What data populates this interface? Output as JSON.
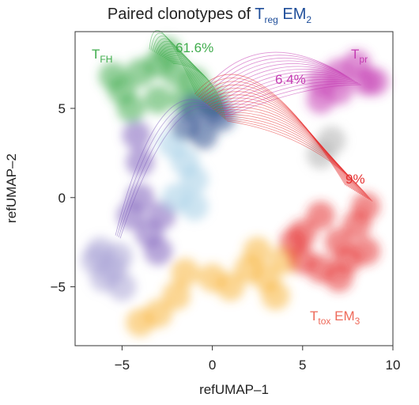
{
  "chart_data": {
    "type": "scatter",
    "title": {
      "text": "Paired clonotypes of ",
      "sub_main": "T",
      "sub_script": "reg",
      "tail": " EM",
      "tail_script": "2"
    },
    "xlabel": "refUMAP–1",
    "ylabel": "refUMAP–2",
    "xlim": [
      -7.6,
      10
    ],
    "ylim": [
      -8.3,
      9.3
    ],
    "xticks": [
      {
        "value": -5,
        "label": "−5"
      },
      0,
      5,
      10
    ],
    "yticks": [
      {
        "value": -5,
        "label": "−5"
      },
      0,
      5
    ],
    "annotations": [
      {
        "main": "T",
        "script": "FH"
      },
      {
        "text": "61.6%"
      },
      {
        "main": "T",
        "script": "pr"
      },
      {
        "text": "6.4%"
      },
      {
        "text": "9%"
      },
      {
        "main": "T",
        "script": "tox",
        "tail": " EM",
        "tail_script": "3"
      }
    ],
    "series": [
      {
        "color": "#a9a4d6",
        "x": [
          -6.5,
          -6,
          -5.5,
          -5,
          -6.2,
          -5.2
        ],
        "y": [
          -3.5,
          -4.5,
          -4,
          -5,
          -3,
          -3.3
        ]
      },
      {
        "color": "#f7b53c",
        "x": [
          -2,
          -3,
          0,
          2,
          3,
          4,
          3.5,
          1,
          -4,
          -1.5,
          2.5
        ],
        "y": [
          -5.5,
          -6.5,
          -4.5,
          -4,
          -4.5,
          -3.5,
          -5.5,
          -5,
          -7,
          -4.2,
          -3
        ]
      },
      {
        "color": "#7d5fbc",
        "x": [
          -4,
          -4,
          -4.5,
          -3.5,
          -3,
          -4.2,
          -2.8
        ],
        "y": [
          2,
          0,
          -1,
          -2,
          -3,
          3.5,
          -1
        ]
      },
      {
        "color": "#a3cde6",
        "x": [
          -1.5,
          -1,
          -2,
          -1,
          -2.2
        ],
        "y": [
          2,
          1,
          0,
          -0.5,
          3
        ]
      },
      {
        "color": "#e53030",
        "x": [
          5,
          6,
          7,
          8,
          8.5,
          7,
          6,
          8.5,
          5,
          4.5,
          7.5
        ],
        "y": [
          -3.5,
          -4,
          -2.5,
          -1.5,
          -3,
          -4.5,
          -1,
          -0.5,
          -2,
          -2.5,
          -3.5
        ]
      },
      {
        "color": "#3fac4c",
        "x": [
          -5,
          -4,
          -3,
          -2,
          -1,
          -4.5,
          -3,
          -1.5,
          0,
          -5.5,
          -2.5
        ],
        "y": [
          6,
          7,
          7.5,
          7,
          6.5,
          5,
          5.5,
          5.5,
          5.5,
          6.8,
          8.2
        ]
      },
      {
        "color": "#2b4a8c",
        "x": [
          -1,
          0,
          -1.5,
          0.5,
          -0.5
        ],
        "y": [
          5,
          5,
          4,
          4.5,
          3.5
        ]
      },
      {
        "color": "#c43db2",
        "x": [
          6,
          7,
          8,
          8.5,
          7,
          6,
          9
        ],
        "y": [
          6.5,
          7,
          7.5,
          6.5,
          6,
          5.5,
          6.5
        ]
      },
      {
        "color": "#b0b0b0",
        "x": [
          6,
          6.6
        ],
        "y": [
          2.4,
          3.2
        ]
      }
    ]
  }
}
